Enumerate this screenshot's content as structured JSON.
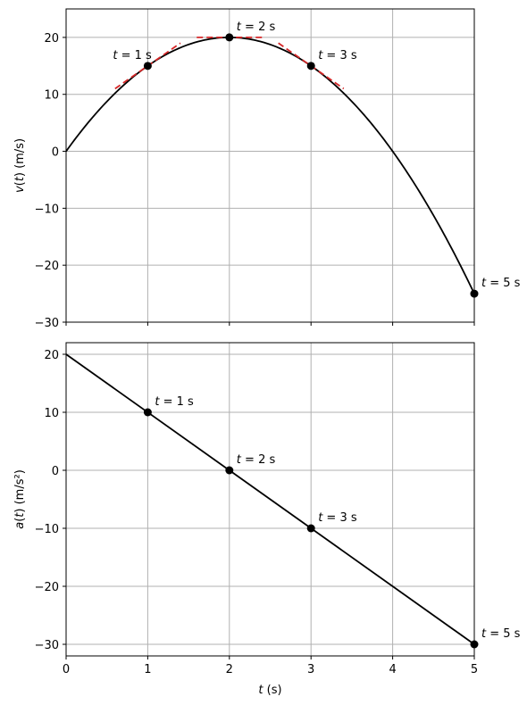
{
  "chart_data": [
    {
      "type": "line",
      "panel": "top",
      "xlabel": "",
      "ylabel": "v(t) (m/s)",
      "xlim": [
        0,
        5
      ],
      "ylim": [
        -30,
        25
      ],
      "xticks": [
        0,
        1,
        2,
        3,
        4,
        5
      ],
      "yticks": [
        -30,
        -20,
        -10,
        0,
        10,
        20
      ],
      "grid": true,
      "curve": {
        "formula": "v(t) = 20t - 5t^2",
        "x": [
          0,
          0.5,
          1,
          1.5,
          2,
          2.5,
          3,
          3.5,
          4,
          4.5,
          5
        ],
        "y": [
          0,
          8.75,
          15,
          18.75,
          20,
          18.75,
          15,
          8.75,
          0,
          -11.25,
          -25
        ],
        "color": "#000000"
      },
      "tangents": [
        {
          "x0": 1,
          "y0": 15,
          "slope": 10,
          "x_range": [
            0.6,
            1.4
          ],
          "color": "#d62728"
        },
        {
          "x0": 2,
          "y0": 20,
          "slope": 0,
          "x_range": [
            1.6,
            2.4
          ],
          "color": "#d62728"
        },
        {
          "x0": 3,
          "y0": 15,
          "slope": -10,
          "x_range": [
            2.6,
            3.4
          ],
          "color": "#d62728"
        }
      ],
      "points": [
        {
          "x": 1,
          "y": 15,
          "label": "t = 1 s"
        },
        {
          "x": 2,
          "y": 20,
          "label": "t = 2 s"
        },
        {
          "x": 3,
          "y": 15,
          "label": "t = 3 s"
        },
        {
          "x": 5,
          "y": -25,
          "label": "t = 5 s"
        }
      ]
    },
    {
      "type": "line",
      "panel": "bottom",
      "xlabel": "t (s)",
      "ylabel": "a(t) (m/s²)",
      "xlim": [
        0,
        5
      ],
      "ylim": [
        -32,
        22
      ],
      "xticks": [
        0,
        1,
        2,
        3,
        4,
        5
      ],
      "yticks": [
        -30,
        -20,
        -10,
        0,
        10,
        20
      ],
      "grid": true,
      "curve": {
        "formula": "a(t) = 20 - 10t",
        "x": [
          0,
          5
        ],
        "y": [
          20,
          -30
        ],
        "color": "#000000"
      },
      "points": [
        {
          "x": 1,
          "y": 10,
          "label": "t = 1 s"
        },
        {
          "x": 2,
          "y": 0,
          "label": "t = 2 s"
        },
        {
          "x": 3,
          "y": -10,
          "label": "t = 3 s"
        },
        {
          "x": 5,
          "y": -30,
          "label": "t = 5 s"
        }
      ]
    }
  ]
}
